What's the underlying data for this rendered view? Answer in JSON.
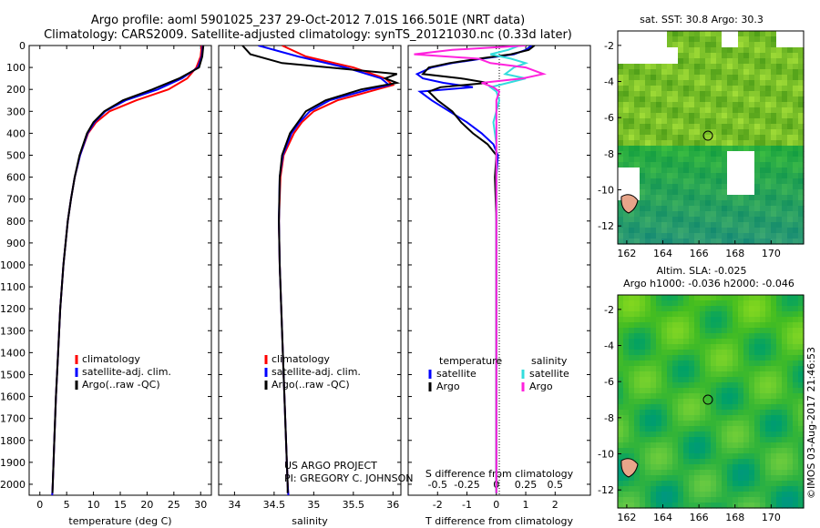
{
  "header": {
    "line1": "Argo profile: aoml 5901025_237 29-Oct-2012 7.01S 166.501E (NRT data)",
    "line2": "Climatology: CARS2009. Satellite-adjusted climatology: synTS_20121030.nc (0.33d later)"
  },
  "colors": {
    "climatology": "#ff0000",
    "satellite": "#0000ff",
    "argo": "#000000",
    "cyan": "#33dddd",
    "magenta": "#ff22dd"
  },
  "chart_data": [
    {
      "type": "line",
      "id": "temperature",
      "xlabel": "temperature (deg C)",
      "ylabel": "",
      "xlim": [
        -2,
        32
      ],
      "ylim": [
        2050,
        0
      ],
      "xticks": [
        0,
        5,
        10,
        15,
        20,
        25,
        30
      ],
      "yticks": [
        0,
        100,
        200,
        300,
        400,
        500,
        600,
        700,
        800,
        900,
        1000,
        1100,
        1200,
        1300,
        1400,
        1500,
        1600,
        1700,
        1800,
        1900,
        2000
      ],
      "legend": [
        "climatology",
        "satellite-adj. clim.",
        "Argo(..raw -QC)"
      ],
      "series": [
        {
          "name": "climatology",
          "color": "#ff0000",
          "depth": [
            0,
            50,
            100,
            150,
            200,
            250,
            300,
            350,
            400,
            500,
            600,
            700,
            800,
            900,
            1000,
            1200,
            1400,
            1600,
            1800,
            2000,
            2050
          ],
          "values": [
            30.2,
            30.0,
            29.2,
            27.5,
            24.0,
            18.0,
            13.0,
            10.5,
            9.0,
            7.5,
            6.5,
            5.8,
            5.2,
            4.8,
            4.4,
            3.8,
            3.4,
            3.0,
            2.7,
            2.4,
            2.3
          ]
        },
        {
          "name": "satellite-adj. clim.",
          "color": "#0000ff",
          "depth": [
            0,
            50,
            100,
            150,
            200,
            250,
            300,
            350,
            400,
            500,
            600,
            700,
            800,
            900,
            1000,
            1200,
            1400,
            1600,
            1800,
            2000,
            2050
          ],
          "values": [
            30.4,
            30.2,
            29.5,
            26.5,
            22.0,
            16.0,
            12.2,
            10.2,
            8.9,
            7.5,
            6.5,
            5.8,
            5.2,
            4.8,
            4.4,
            3.8,
            3.4,
            3.0,
            2.7,
            2.4,
            2.3
          ]
        },
        {
          "name": "Argo(..raw -QC)",
          "color": "#000000",
          "depth": [
            0,
            50,
            100,
            150,
            200,
            250,
            300,
            350,
            400,
            500,
            600,
            700,
            800,
            900,
            1000,
            1200,
            1400,
            1600,
            1800,
            2000,
            2040
          ],
          "values": [
            30.5,
            30.3,
            29.7,
            26.0,
            21.0,
            15.5,
            12.0,
            10.0,
            8.8,
            7.4,
            6.5,
            5.8,
            5.2,
            4.8,
            4.4,
            3.8,
            3.4,
            3.0,
            2.7,
            2.4,
            2.35
          ]
        }
      ]
    },
    {
      "type": "line",
      "id": "salinity",
      "xlabel": "salinity",
      "ylabel": "",
      "xlim": [
        33.8,
        36.1
      ],
      "ylim": [
        2050,
        0
      ],
      "xticks": [
        34,
        34.5,
        35,
        35.5,
        36
      ],
      "legend": [
        "climatology",
        "satellite-adj. clim.",
        "Argo(..raw -QC)"
      ],
      "annotation": [
        "US ARGO PROJECT",
        "PI: GREGORY C. JOHNSON"
      ],
      "series": [
        {
          "name": "climatology",
          "color": "#ff0000",
          "depth": [
            0,
            50,
            100,
            150,
            180,
            200,
            250,
            300,
            350,
            400,
            500,
            600,
            800,
            1000,
            1500,
            2000,
            2050
          ],
          "values": [
            34.6,
            34.9,
            35.5,
            35.9,
            36.0,
            35.8,
            35.3,
            35.0,
            34.85,
            34.75,
            34.62,
            34.58,
            34.56,
            34.57,
            34.62,
            34.67,
            34.68
          ]
        },
        {
          "name": "satellite-adj. clim.",
          "color": "#0000ff",
          "depth": [
            0,
            50,
            100,
            150,
            180,
            200,
            250,
            300,
            350,
            400,
            500,
            600,
            800,
            1000,
            1500,
            2000,
            2050
          ],
          "values": [
            34.3,
            34.8,
            35.4,
            35.85,
            35.95,
            35.7,
            35.2,
            34.95,
            34.82,
            34.72,
            34.61,
            34.57,
            34.56,
            34.57,
            34.62,
            34.67,
            34.68
          ]
        },
        {
          "name": "Argo(..raw -QC)",
          "color": "#000000",
          "depth": [
            0,
            40,
            80,
            100,
            130,
            150,
            170,
            200,
            250,
            300,
            350,
            400,
            500,
            600,
            800,
            1000,
            1500,
            2000,
            2040
          ],
          "values": [
            34.1,
            34.2,
            34.6,
            35.2,
            36.05,
            35.9,
            36.05,
            35.6,
            35.15,
            34.9,
            34.8,
            34.7,
            34.6,
            34.57,
            34.56,
            34.57,
            34.62,
            34.67,
            34.67
          ]
        }
      ]
    },
    {
      "type": "line",
      "id": "difference",
      "xlabel": "T difference from climatology",
      "xlabel2": "S difference from climatology",
      "xlim": [
        -3,
        3.2
      ],
      "ylim": [
        2050,
        0
      ],
      "xticks": [
        -2,
        -1,
        0,
        1,
        2
      ],
      "xticklabels_top": [
        "-0.5",
        "-0.25",
        "0",
        "0.25",
        "0.5"
      ],
      "legend_left_title": "temperature",
      "legend_right_title": "salinity",
      "legend": [
        {
          "label": "satellite",
          "color": "#0000ff",
          "side": "left"
        },
        {
          "label": "Argo",
          "color": "#000000",
          "side": "left"
        },
        {
          "label": "satellite",
          "color": "#33dddd",
          "side": "right"
        },
        {
          "label": "Argo",
          "color": "#ff22dd",
          "side": "right"
        }
      ],
      "series": [
        {
          "name": "T satellite",
          "color": "#0000ff",
          "depth": [
            0,
            20,
            40,
            60,
            80,
            100,
            130,
            150,
            170,
            190,
            210,
            250,
            300,
            350,
            400,
            450,
            500,
            600,
            800,
            1000,
            1500,
            2000,
            2040
          ],
          "values": [
            1.2,
            1.0,
            0.6,
            -0.5,
            -1.5,
            -2.2,
            -2.7,
            -2.5,
            -1.8,
            -0.8,
            -2.6,
            -2.2,
            -1.6,
            -1.0,
            -0.5,
            -0.1,
            0.05,
            0.0,
            0.0,
            0.0,
            0.0,
            0.0,
            0.0
          ]
        },
        {
          "name": "T Argo",
          "color": "#000000",
          "depth": [
            0,
            20,
            40,
            60,
            80,
            100,
            130,
            150,
            170,
            190,
            210,
            250,
            300,
            350,
            400,
            450,
            500,
            600,
            800,
            1000,
            1500,
            2000,
            2040
          ],
          "values": [
            1.3,
            1.1,
            0.5,
            -0.6,
            -1.6,
            -2.3,
            -2.5,
            -1.2,
            -0.3,
            -1.9,
            -2.3,
            -2.0,
            -1.5,
            -1.2,
            -0.8,
            -0.3,
            0.0,
            -0.05,
            0.0,
            0.0,
            0.0,
            0.0,
            0.0
          ]
        },
        {
          "name": "S satellite",
          "color": "#33dddd",
          "depth": [
            0,
            20,
            40,
            60,
            80,
            100,
            130,
            150,
            170,
            190,
            210,
            250,
            300,
            350,
            400,
            450,
            500,
            600,
            800,
            1000,
            1500,
            2000,
            2040
          ],
          "values": [
            0.8,
            0.4,
            -0.2,
            0.5,
            1.0,
            0.6,
            0.3,
            1.0,
            0.4,
            -0.2,
            0.0,
            0.1,
            0.0,
            -0.1,
            -0.05,
            0.0,
            0.0,
            0.0,
            0.0,
            0.0,
            0.0,
            0.0,
            0.0
          ]
        },
        {
          "name": "S Argo",
          "color": "#ff22dd",
          "depth": [
            0,
            20,
            40,
            60,
            80,
            100,
            130,
            150,
            170,
            190,
            210,
            250,
            300,
            350,
            400,
            450,
            500,
            600,
            800,
            1000,
            1500,
            2000,
            2040
          ],
          "values": [
            1.0,
            -1.5,
            -2.8,
            -0.6,
            -0.2,
            1.0,
            1.6,
            0.9,
            -0.5,
            -0.1,
            0.1,
            0.0,
            0.0,
            0.0,
            0.0,
            0.0,
            0.0,
            0.0,
            0.0,
            0.0,
            0.0,
            0.0,
            0.0
          ]
        }
      ]
    },
    {
      "type": "heatmap",
      "id": "sst-map",
      "title": "sat. SST: 30.8  Argo: 30.3",
      "xlim": [
        161.5,
        171.8
      ],
      "ylim": [
        -13,
        -1.2
      ],
      "xticks": [
        162,
        164,
        166,
        168,
        170
      ],
      "yticks": [
        -2,
        -4,
        -6,
        -8,
        -10,
        -12
      ],
      "marker": {
        "x": 166.5,
        "y": -7.0
      }
    },
    {
      "type": "heatmap",
      "id": "sla-map",
      "title": "Altim. SLA: -0.025",
      "subtitle": "Argo h1000: -0.036 h2000: -0.046",
      "xlim": [
        161.5,
        171.8
      ],
      "ylim": [
        -13,
        -1.2
      ],
      "xticks": [
        162,
        164,
        166,
        168,
        170
      ],
      "yticks": [
        -2,
        -4,
        -6,
        -8,
        -10,
        -12
      ],
      "marker": {
        "x": 166.5,
        "y": -7.0
      }
    }
  ],
  "credit": "©IMOS 03-Aug-2017 21:46:53"
}
